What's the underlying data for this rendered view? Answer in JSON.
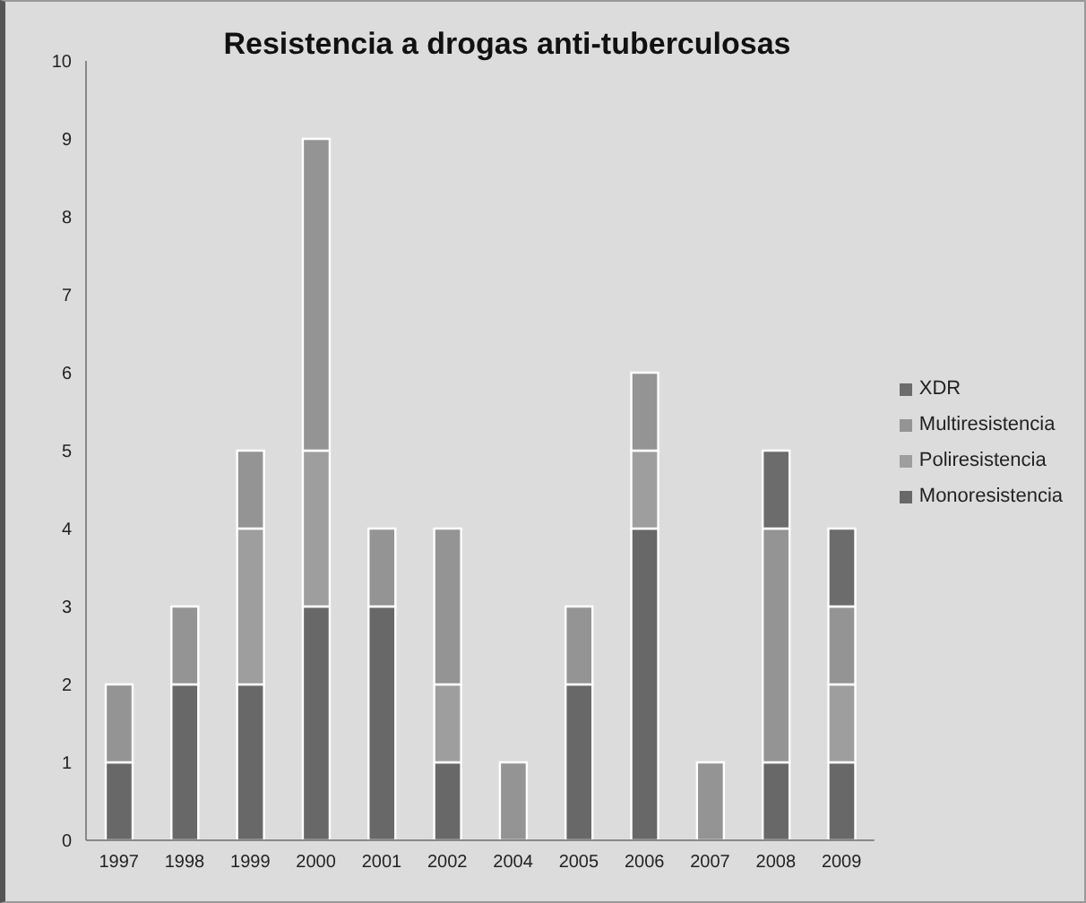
{
  "chart_data": {
    "type": "bar",
    "title": "Resistencia a drogas anti-tuberculosas",
    "categories": [
      "1997",
      "1998",
      "1999",
      "2000",
      "2001",
      "2002",
      "2004",
      "2005",
      "2006",
      "2007",
      "2008",
      "2009"
    ],
    "stacked": true,
    "ylim": [
      0,
      10
    ],
    "yticks": [
      0,
      1,
      2,
      3,
      4,
      5,
      6,
      7,
      8,
      9,
      10
    ],
    "grid": false,
    "legend": "right",
    "series": [
      {
        "name": "Monoresistencia",
        "color": "#686868",
        "values": [
          1,
          2,
          2,
          3,
          3,
          1,
          0,
          2,
          4,
          0,
          1,
          1
        ]
      },
      {
        "name": "Poliresistencia",
        "color": "#9e9e9e",
        "values": [
          0,
          0,
          2,
          2,
          0,
          1,
          0,
          0,
          1,
          0,
          0,
          1
        ]
      },
      {
        "name": "Multiresistencia",
        "color": "#949494",
        "values": [
          1,
          1,
          1,
          4,
          1,
          2,
          1,
          1,
          1,
          1,
          3,
          1
        ]
      },
      {
        "name": "XDR",
        "color": "#6c6c6c",
        "values": [
          0,
          0,
          0,
          0,
          0,
          0,
          0,
          0,
          0,
          0,
          1,
          1
        ]
      }
    ]
  }
}
